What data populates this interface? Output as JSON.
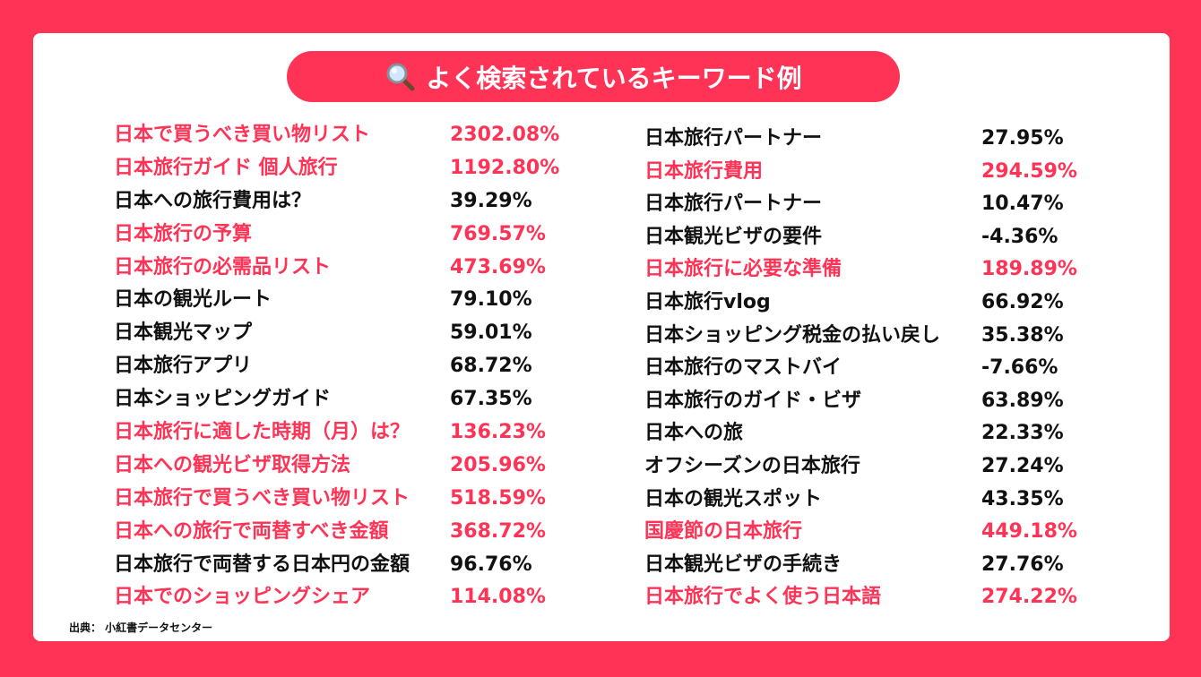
{
  "title": "よく検索されているキーワード例",
  "title_icon": "magnifier-icon",
  "accent_color": "#FF3355",
  "source": "出典： 小紅書データセンター",
  "left_keywords": [
    {
      "keyword": "日本で買うべき買い物リスト",
      "percent": "2302.08%",
      "highlight": true
    },
    {
      "keyword": "日本旅行ガイド 個人旅行",
      "percent": "1192.80%",
      "highlight": true
    },
    {
      "keyword": "日本への旅行費用は？",
      "percent": "39.29%",
      "highlight": false
    },
    {
      "keyword": "日本旅行の予算",
      "percent": "769.57%",
      "highlight": true
    },
    {
      "keyword": "日本旅行の必需品リスト",
      "percent": "473.69%",
      "highlight": true
    },
    {
      "keyword": "日本の観光ルート",
      "percent": "79.10%",
      "highlight": false
    },
    {
      "keyword": "日本観光マップ",
      "percent": "59.01%",
      "highlight": false
    },
    {
      "keyword": "日本旅行アプリ",
      "percent": "68.72%",
      "highlight": false
    },
    {
      "keyword": "日本ショッピングガイド",
      "percent": "67.35%",
      "highlight": false
    },
    {
      "keyword": "日本旅行に適した時期（月）は？",
      "percent": "136.23%",
      "highlight": true
    },
    {
      "keyword": "日本への観光ビザ取得方法",
      "percent": "205.96%",
      "highlight": true
    },
    {
      "keyword": "日本旅行で買うべき買い物リスト",
      "percent": "518.59%",
      "highlight": true
    },
    {
      "keyword": "日本への旅行で両替すべき金額",
      "percent": "368.72%",
      "highlight": true
    },
    {
      "keyword": "日本旅行で両替する日本円の金額",
      "percent": "96.76%",
      "highlight": false
    },
    {
      "keyword": "日本でのショッピングシェア",
      "percent": "114.08%",
      "highlight": true
    }
  ],
  "right_keywords": [
    {
      "keyword": "日本旅行パートナー",
      "percent": "27.95%",
      "highlight": false
    },
    {
      "keyword": "日本旅行費用",
      "percent": "294.59%",
      "highlight": true
    },
    {
      "keyword": "日本旅行パートナー",
      "percent": "10.47%",
      "highlight": false
    },
    {
      "keyword": "日本観光ビザの要件",
      "percent": "-4.36%",
      "highlight": false
    },
    {
      "keyword": "日本旅行に必要な準備",
      "percent": "189.89%",
      "highlight": true
    },
    {
      "keyword": "日本旅行vlog",
      "percent": "66.92%",
      "highlight": false
    },
    {
      "keyword": "日本ショッピング税金の払い戻し",
      "percent": "35.38%",
      "highlight": false
    },
    {
      "keyword": "日本旅行のマストバイ",
      "percent": "-7.66%",
      "highlight": false
    },
    {
      "keyword": "日本旅行のガイド・ビザ",
      "percent": "63.89%",
      "highlight": false
    },
    {
      "keyword": "日本への旅",
      "percent": "22.33%",
      "highlight": false
    },
    {
      "keyword": "オフシーズンの日本旅行",
      "percent": "27.24%",
      "highlight": false
    },
    {
      "keyword": "日本の観光スポット",
      "percent": "43.35%",
      "highlight": false
    },
    {
      "keyword": "国慶節の日本旅行",
      "percent": "449.18%",
      "highlight": true
    },
    {
      "keyword": "日本観光ビザの手続き",
      "percent": "27.76%",
      "highlight": false
    },
    {
      "keyword": "日本旅行でよく使う日本語",
      "percent": "274.22%",
      "highlight": true
    }
  ]
}
